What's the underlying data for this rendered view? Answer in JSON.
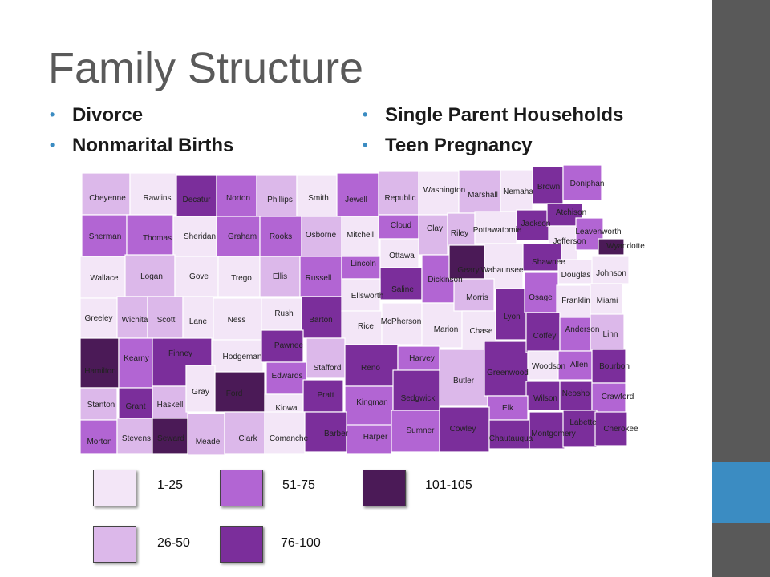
{
  "slide": {
    "title": "Family Structure",
    "bullets_left": [
      "Divorce",
      "Nonmarital Births"
    ],
    "bullets_right": [
      "Single Parent Households",
      "Teen Pregnancy"
    ]
  },
  "colors": {
    "c1": "#f3e6f7",
    "c2": "#dcb8ea",
    "c3": "#b265d3",
    "c4": "#7b2e9b",
    "c5": "#4b1a57"
  },
  "legend": [
    {
      "label": "1-25",
      "cls": "c1"
    },
    {
      "label": "51-75",
      "cls": "c3"
    },
    {
      "label": "101-105",
      "cls": "c5"
    },
    {
      "label": "26-50",
      "cls": "c2"
    },
    {
      "label": "76-100",
      "cls": "c4"
    }
  ],
  "counties": [
    {
      "name": "Cheyenne",
      "cls": "c2"
    },
    {
      "name": "Rawlins",
      "cls": "c1"
    },
    {
      "name": "Decatur",
      "cls": "c4"
    },
    {
      "name": "Norton",
      "cls": "c3"
    },
    {
      "name": "Phillips",
      "cls": "c2"
    },
    {
      "name": "Smith",
      "cls": "c1"
    },
    {
      "name": "Jewell",
      "cls": "c3"
    },
    {
      "name": "Republic",
      "cls": "c2"
    },
    {
      "name": "Washington",
      "cls": "c1"
    },
    {
      "name": "Marshall",
      "cls": "c2"
    },
    {
      "name": "Nemaha",
      "cls": "c1"
    },
    {
      "name": "Brown",
      "cls": "c4"
    },
    {
      "name": "Doniphan",
      "cls": "c3"
    },
    {
      "name": "Sherman",
      "cls": "c3"
    },
    {
      "name": "Thomas",
      "cls": "c3"
    },
    {
      "name": "Sheridan",
      "cls": "c1"
    },
    {
      "name": "Graham",
      "cls": "c3"
    },
    {
      "name": "Rooks",
      "cls": "c3"
    },
    {
      "name": "Osborne",
      "cls": "c2"
    },
    {
      "name": "Mitchell",
      "cls": "c1"
    },
    {
      "name": "Cloud",
      "cls": "c3"
    },
    {
      "name": "Clay",
      "cls": "c2"
    },
    {
      "name": "Riley",
      "cls": "c2"
    },
    {
      "name": "Pottawatomie",
      "cls": "c1"
    },
    {
      "name": "Jackson",
      "cls": "c4"
    },
    {
      "name": "Atchison",
      "cls": "c4"
    },
    {
      "name": "Jefferson",
      "cls": "c1"
    },
    {
      "name": "Leavenworth",
      "cls": "c3"
    },
    {
      "name": "Wyandotte",
      "cls": "c5"
    },
    {
      "name": "Wallace",
      "cls": "c1"
    },
    {
      "name": "Logan",
      "cls": "c2"
    },
    {
      "name": "Gove",
      "cls": "c1"
    },
    {
      "name": "Trego",
      "cls": "c1"
    },
    {
      "name": "Ellis",
      "cls": "c2"
    },
    {
      "name": "Russell",
      "cls": "c3"
    },
    {
      "name": "Lincoln",
      "cls": "c3"
    },
    {
      "name": "Ottawa",
      "cls": "c1"
    },
    {
      "name": "Saline",
      "cls": "c4"
    },
    {
      "name": "Dickinson",
      "cls": "c3"
    },
    {
      "name": "Geary",
      "cls": "c5"
    },
    {
      "name": "Wabaunsee",
      "cls": "c1"
    },
    {
      "name": "Shawnee",
      "cls": "c4"
    },
    {
      "name": "Douglas",
      "cls": "c1"
    },
    {
      "name": "Johnson",
      "cls": "c1"
    },
    {
      "name": "Greeley",
      "cls": "c1"
    },
    {
      "name": "Wichita",
      "cls": "c2"
    },
    {
      "name": "Scott",
      "cls": "c2"
    },
    {
      "name": "Lane",
      "cls": "c1"
    },
    {
      "name": "Ness",
      "cls": "c1"
    },
    {
      "name": "Rush",
      "cls": "c1"
    },
    {
      "name": "Barton",
      "cls": "c4"
    },
    {
      "name": "Ellsworth",
      "cls": "c1"
    },
    {
      "name": "Rice",
      "cls": "c1"
    },
    {
      "name": "McPherson",
      "cls": "c1"
    },
    {
      "name": "Marion",
      "cls": "c1"
    },
    {
      "name": "Morris",
      "cls": "c2"
    },
    {
      "name": "Chase",
      "cls": "c1"
    },
    {
      "name": "Lyon",
      "cls": "c4"
    },
    {
      "name": "Osage",
      "cls": "c3"
    },
    {
      "name": "Franklin",
      "cls": "c1"
    },
    {
      "name": "Miami",
      "cls": "c1"
    },
    {
      "name": "Hamilton",
      "cls": "c5"
    },
    {
      "name": "Kearny",
      "cls": "c3"
    },
    {
      "name": "Finney",
      "cls": "c4"
    },
    {
      "name": "Hodgeman",
      "cls": "c1"
    },
    {
      "name": "Pawnee",
      "cls": "c4"
    },
    {
      "name": "Stafford",
      "cls": "c2"
    },
    {
      "name": "Edwards",
      "cls": "c3"
    },
    {
      "name": "Reno",
      "cls": "c4"
    },
    {
      "name": "Harvey",
      "cls": "c3"
    },
    {
      "name": "Butler",
      "cls": "c2"
    },
    {
      "name": "Greenwood",
      "cls": "c4"
    },
    {
      "name": "Coffey",
      "cls": "c4"
    },
    {
      "name": "Anderson",
      "cls": "c3"
    },
    {
      "name": "Linn",
      "cls": "c2"
    },
    {
      "name": "Woodson",
      "cls": "c1"
    },
    {
      "name": "Allen",
      "cls": "c3"
    },
    {
      "name": "Bourbon",
      "cls": "c4"
    },
    {
      "name": "Stanton",
      "cls": "c2"
    },
    {
      "name": "Grant",
      "cls": "c4"
    },
    {
      "name": "Haskell",
      "cls": "c2"
    },
    {
      "name": "Gray",
      "cls": "c1"
    },
    {
      "name": "Ford",
      "cls": "c5"
    },
    {
      "name": "Kiowa",
      "cls": "c1"
    },
    {
      "name": "Pratt",
      "cls": "c4"
    },
    {
      "name": "Kingman",
      "cls": "c3"
    },
    {
      "name": "Sedgwick",
      "cls": "c4"
    },
    {
      "name": "Wilson",
      "cls": "c4"
    },
    {
      "name": "Neosho",
      "cls": "c4"
    },
    {
      "name": "Crawford",
      "cls": "c3"
    },
    {
      "name": "Elk",
      "cls": "c3"
    },
    {
      "name": "Morton",
      "cls": "c3"
    },
    {
      "name": "Stevens",
      "cls": "c2"
    },
    {
      "name": "Seward",
      "cls": "c5"
    },
    {
      "name": "Meade",
      "cls": "c2"
    },
    {
      "name": "Clark",
      "cls": "c2"
    },
    {
      "name": "Comanche",
      "cls": "c1"
    },
    {
      "name": "Barber",
      "cls": "c4"
    },
    {
      "name": "Harper",
      "cls": "c3"
    },
    {
      "name": "Sumner",
      "cls": "c3"
    },
    {
      "name": "Cowley",
      "cls": "c4"
    },
    {
      "name": "Chautauqua",
      "cls": "c4"
    },
    {
      "name": "Montgomery",
      "cls": "c4"
    },
    {
      "name": "Labette",
      "cls": "c4"
    },
    {
      "name": "Cherokee",
      "cls": "c4"
    }
  ]
}
